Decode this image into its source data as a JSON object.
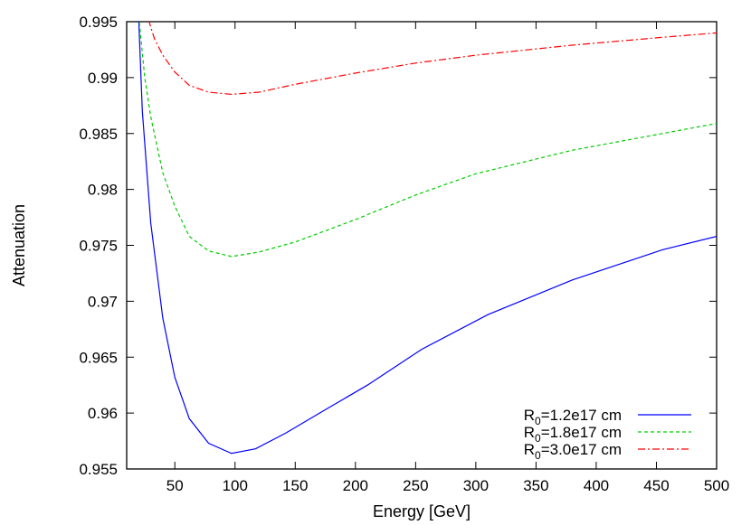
{
  "chart_data": {
    "type": "line",
    "xlabel": "Energy [GeV]",
    "ylabel": "Attenuation",
    "xlim": [
      10,
      500
    ],
    "ylim": [
      0.955,
      0.995
    ],
    "xticks": [
      50,
      100,
      150,
      200,
      250,
      300,
      350,
      400,
      450,
      500
    ],
    "xtick_labels": [
      "50",
      "100",
      "150",
      "200",
      "250",
      "300",
      "350",
      "400",
      "450",
      "500"
    ],
    "yticks": [
      0.955,
      0.96,
      0.965,
      0.97,
      0.975,
      0.98,
      0.985,
      0.99,
      0.995
    ],
    "ytick_labels": [
      "0.955",
      "0.96",
      "0.965",
      "0.97",
      "0.975",
      "0.98",
      "0.985",
      "0.99",
      "0.995"
    ],
    "grid": false,
    "legend_position": "bottom-right",
    "series": [
      {
        "name_parts": {
          "main": "R",
          "sub": "0",
          "rest": "=1.2e17 cm"
        },
        "color": "#0000ff",
        "dash": "solid",
        "points": [
          [
            20,
            0.9952
          ],
          [
            23,
            0.987
          ],
          [
            30,
            0.977
          ],
          [
            40,
            0.9685
          ],
          [
            50,
            0.9632
          ],
          [
            62,
            0.9595
          ],
          [
            78,
            0.9573
          ],
          [
            97,
            0.9564
          ],
          [
            117,
            0.9568
          ],
          [
            142,
            0.9582
          ],
          [
            175,
            0.9603
          ],
          [
            210,
            0.9625
          ],
          [
            255,
            0.9657
          ],
          [
            310,
            0.9688
          ],
          [
            380,
            0.9719
          ],
          [
            455,
            0.9746
          ],
          [
            500,
            0.9758
          ]
        ]
      },
      {
        "name_parts": {
          "main": "R",
          "sub": "0",
          "rest": "=1.8e17 cm"
        },
        "color": "#00cc00",
        "dash": "4,3",
        "points": [
          [
            20,
            0.9955
          ],
          [
            25,
            0.99
          ],
          [
            30,
            0.9865
          ],
          [
            40,
            0.9815
          ],
          [
            50,
            0.9785
          ],
          [
            62,
            0.9758
          ],
          [
            78,
            0.9745
          ],
          [
            97,
            0.974
          ],
          [
            120,
            0.9744
          ],
          [
            150,
            0.9753
          ],
          [
            200,
            0.9773
          ],
          [
            250,
            0.9795
          ],
          [
            300,
            0.9814
          ],
          [
            380,
            0.9835
          ],
          [
            455,
            0.985
          ],
          [
            500,
            0.9859
          ]
        ]
      },
      {
        "name_parts": {
          "main": "R",
          "sub": "0",
          "rest": "=3.0e17 cm"
        },
        "color": "#ff0000",
        "dash": "8,3,2,3",
        "points": [
          [
            28,
            0.9952
          ],
          [
            33,
            0.9935
          ],
          [
            40,
            0.992
          ],
          [
            50,
            0.9905
          ],
          [
            62,
            0.9893
          ],
          [
            78,
            0.9887
          ],
          [
            97,
            0.9885
          ],
          [
            120,
            0.9887
          ],
          [
            150,
            0.9894
          ],
          [
            200,
            0.9904
          ],
          [
            250,
            0.9913
          ],
          [
            300,
            0.992
          ],
          [
            380,
            0.9929
          ],
          [
            455,
            0.9936
          ],
          [
            500,
            0.994
          ]
        ]
      }
    ]
  }
}
